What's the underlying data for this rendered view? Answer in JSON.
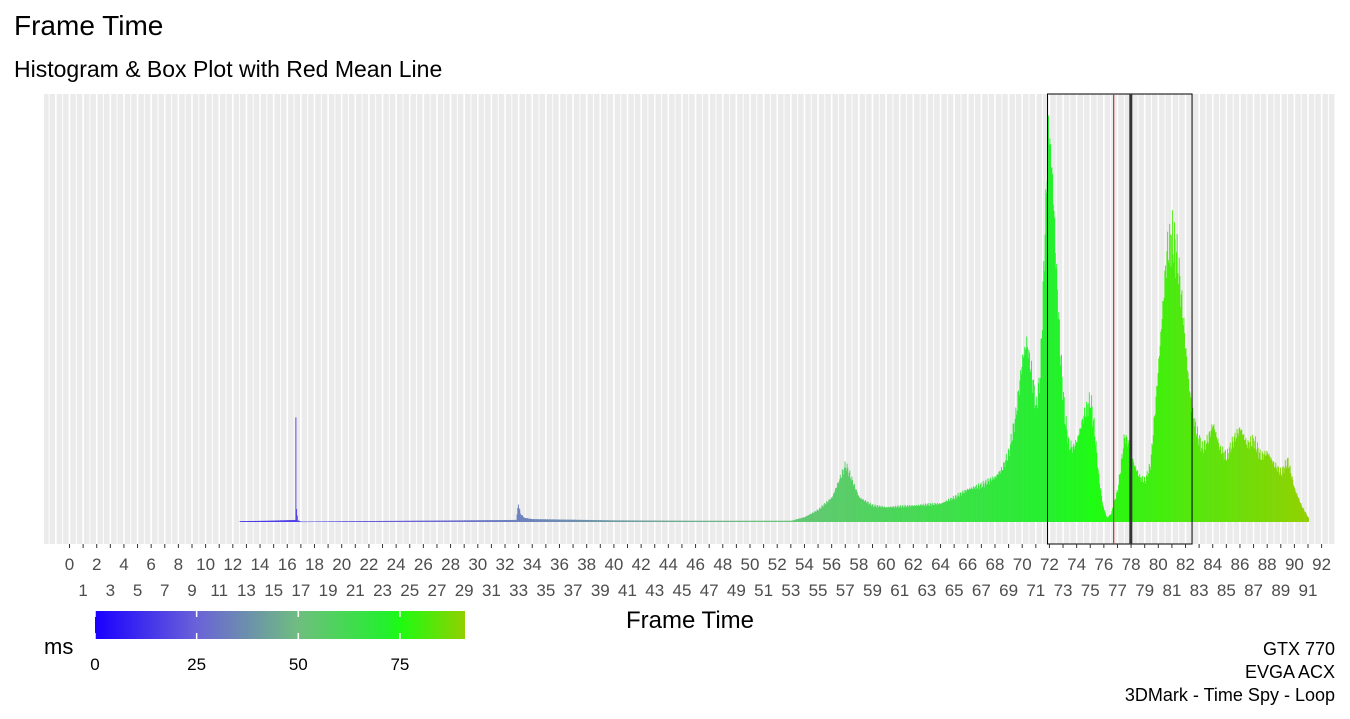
{
  "title": "Frame Time",
  "subtitle": "Histogram & Box Plot with Red Mean Line",
  "caption": {
    "line1": "GTX 770",
    "line2": "EVGA ACX",
    "line3": "3DMark - Time Spy - Loop"
  },
  "chart_data": {
    "type": "bar",
    "kind": "histogram",
    "xlabel": "Frame Time",
    "ylabel": "",
    "xlim": [
      -1,
      93
    ],
    "x_ticks_row1": [
      "0",
      "2",
      "4",
      "6",
      "8",
      "10",
      "12",
      "14",
      "16",
      "18",
      "20",
      "22",
      "24",
      "26",
      "28",
      "30",
      "32",
      "34",
      "36",
      "38",
      "40",
      "42",
      "44",
      "46",
      "48",
      "50",
      "52",
      "54",
      "56",
      "58",
      "60",
      "62",
      "64",
      "66",
      "68",
      "70",
      "72",
      "74",
      "76",
      "78",
      "80",
      "82",
      "84",
      "86",
      "88",
      "90",
      "92"
    ],
    "x_ticks_row2": [
      "1",
      "3",
      "5",
      "7",
      "9",
      "11",
      "13",
      "15",
      "17",
      "19",
      "21",
      "23",
      "25",
      "27",
      "29",
      "31",
      "33",
      "35",
      "37",
      "39",
      "41",
      "43",
      "45",
      "47",
      "49",
      "51",
      "53",
      "55",
      "57",
      "59",
      "61",
      "63",
      "65",
      "67",
      "69",
      "71",
      "73",
      "75",
      "77",
      "79",
      "81",
      "83",
      "85",
      "87",
      "89",
      "91"
    ],
    "grid": "vertical",
    "panel_background": "#ebebeb",
    "histogram_profile": {
      "x": [
        12.5,
        14.5,
        16.55,
        16.6,
        16.65,
        16.75,
        17,
        32.8,
        32.95,
        33.1,
        33.4,
        34,
        40,
        46,
        50,
        52,
        53,
        54,
        55,
        56,
        56.5,
        57,
        57.5,
        58,
        59,
        60,
        62,
        64,
        65,
        66,
        67,
        68,
        68.5,
        69,
        69.5,
        70,
        70.3,
        70.6,
        71,
        71.3,
        71.6,
        71.9,
        72.2,
        72.5,
        72.8,
        73.1,
        73.4,
        73.7,
        74,
        74.5,
        75,
        75.3,
        75.6,
        75.9,
        76.2,
        76.5,
        77,
        77.5,
        77.8,
        78.2,
        78.6,
        79,
        79.4,
        79.8,
        80.2,
        80.6,
        81,
        81.4,
        81.8,
        82.1,
        82.4,
        82.8,
        83.2,
        83.6,
        84,
        84.5,
        85,
        85.5,
        86,
        86.5,
        87,
        87.5,
        88,
        88.5,
        89,
        89.5,
        90,
        90.5,
        91
      ],
      "density": [
        0.2,
        0.3,
        0.5,
        24.5,
        3,
        0.4,
        0.1,
        0.5,
        4.5,
        2,
        1,
        0.7,
        0.4,
        0.3,
        0.3,
        0.3,
        0.3,
        1.2,
        3,
        6,
        10,
        14,
        10,
        6,
        4,
        3.6,
        4,
        4.5,
        6,
        8,
        9,
        11,
        13,
        17,
        26,
        40,
        44,
        38,
        28,
        36,
        66,
        98,
        84,
        60,
        40,
        26,
        19,
        18,
        20,
        26,
        30,
        22,
        11,
        4,
        1,
        2,
        8,
        21,
        19,
        14,
        11,
        10,
        14,
        30,
        48,
        66,
        70,
        64,
        50,
        38,
        28,
        22,
        18,
        20,
        24,
        18,
        16,
        20,
        23,
        19,
        20,
        16,
        17,
        14,
        12,
        15,
        8,
        4,
        1
      ],
      "y_max": 100
    },
    "boxplot": {
      "q1": 71.86,
      "median": 77.98,
      "q3": 82.48,
      "mean": 76.72
    },
    "colors": {
      "mean_line": "#c0392b",
      "median_line": "#333333",
      "box_outline": "#000000"
    },
    "legend": {
      "title": "ms",
      "position": "bottom-left",
      "breaks": [
        "0",
        "25",
        "50",
        "75"
      ],
      "limits": [
        0,
        91
      ],
      "gradient": [
        {
          "value": 0,
          "color": "#1a00ff"
        },
        {
          "value": 25,
          "color": "#6a62d8"
        },
        {
          "value": 50,
          "color": "#6fbe80"
        },
        {
          "value": 72,
          "color": "#22f02c"
        },
        {
          "value": 75,
          "color": "#1dfb12"
        },
        {
          "value": 91,
          "color": "#91d000"
        }
      ]
    }
  }
}
